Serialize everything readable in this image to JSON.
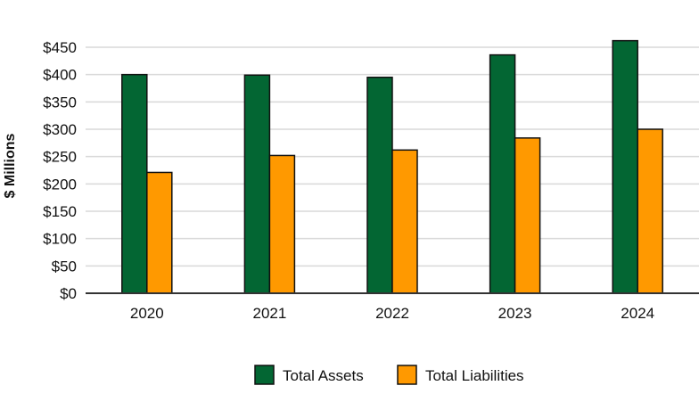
{
  "chart_data": {
    "type": "bar",
    "title": "",
    "xlabel": "",
    "ylabel": "$ Millions",
    "categories": [
      "2020",
      "2021",
      "2022",
      "2023",
      "2024"
    ],
    "series": [
      {
        "name": "Total Assets",
        "color": "#036633",
        "values": [
          400,
          399,
          395,
          436,
          462
        ]
      },
      {
        "name": "Total Liabilities",
        "color": "#ff9900",
        "values": [
          221,
          252,
          262,
          284,
          300
        ]
      }
    ],
    "ylim": [
      0,
      450
    ],
    "yticks": [
      0,
      50,
      100,
      150,
      200,
      250,
      300,
      350,
      400,
      450
    ],
    "ytick_labels": [
      "$0",
      "$50",
      "$100",
      "$150",
      "$200",
      "$250",
      "$300",
      "$350",
      "$400",
      "$450"
    ],
    "grid": true,
    "legend_position": "bottom-center"
  }
}
